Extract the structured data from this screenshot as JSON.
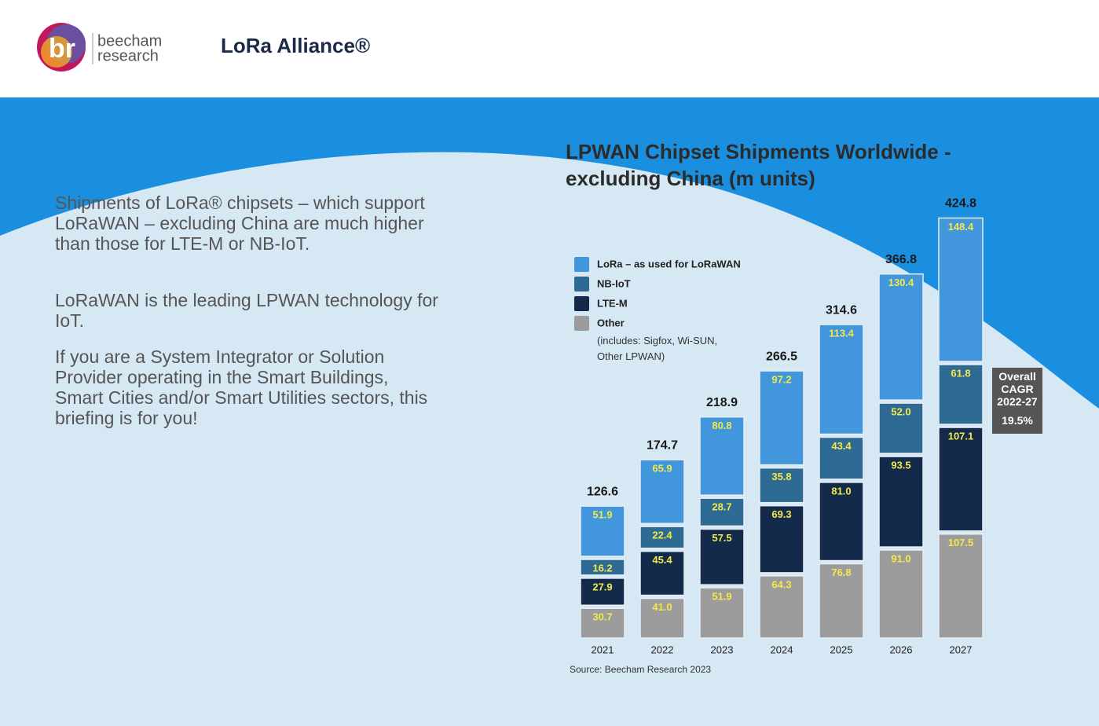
{
  "logos": {
    "br": "br",
    "beecham": "beecham",
    "research": "research",
    "lora": "LoRa Alliance®"
  },
  "paragraphs": [
    "Shipments of LoRa® chipsets – which support LoRaWAN – excluding China are much higher than those for LTE-M or NB-IoT.",
    "LoRaWAN is the leading LPWAN technology for IoT.",
    "If you are a System Integrator or Solution Provider operating in the Smart Buildings, Smart Cities and/or Smart Utilities sectors, this briefing is for you!"
  ],
  "chart_data": {
    "type": "stacked_bar",
    "title": "LPWAN Chipset Shipments Worldwide - excluding China (m units)",
    "categories": [
      "2021",
      "2022",
      "2023",
      "2024",
      "2025",
      "2026",
      "2027"
    ],
    "series": [
      {
        "name": "Other",
        "color": "#9c9c9c",
        "values": [
          30.7,
          41.0,
          51.9,
          64.3,
          76.8,
          91.0,
          107.5
        ],
        "value_labels": [
          "30.7",
          "41.0",
          "51.9",
          "64.3",
          "76.8",
          "91.0",
          "107.5"
        ]
      },
      {
        "name": "LTE-M",
        "color": "#142a4a",
        "values": [
          27.9,
          45.4,
          57.5,
          69.3,
          81.0,
          93.5,
          107.1
        ],
        "value_labels": [
          "27.9",
          "45.4",
          "57.5",
          "69.3",
          "81.0",
          "93.5",
          "107.1"
        ]
      },
      {
        "name": "NB-IoT",
        "color": "#2d6a94",
        "values": [
          16.2,
          22.4,
          28.7,
          35.8,
          43.4,
          52.0,
          61.8
        ],
        "value_labels": [
          "16.2",
          "22.4",
          "28.7",
          "35.8",
          "43.4",
          "52.0",
          "61.8"
        ]
      },
      {
        "name": "LoRa – as used for LoRaWAN",
        "color": "#4196dc",
        "values": [
          51.9,
          65.9,
          80.8,
          97.2,
          113.4,
          130.4,
          148.4
        ],
        "value_labels": [
          "51.9",
          "65.9",
          "80.8",
          "97.2",
          "113.4",
          "130.4",
          "148.4"
        ]
      }
    ],
    "totals": [
      126.6,
      174.7,
      218.9,
      266.5,
      314.6,
      366.8,
      424.8
    ],
    "legend_note": "(includes: Sigfox, Wi-SUN, Other LPWAN)",
    "cagr_label": "Overall CAGR 2022-27",
    "cagr_value": "19.5%",
    "source": "Source: Beecham Research 2023"
  }
}
